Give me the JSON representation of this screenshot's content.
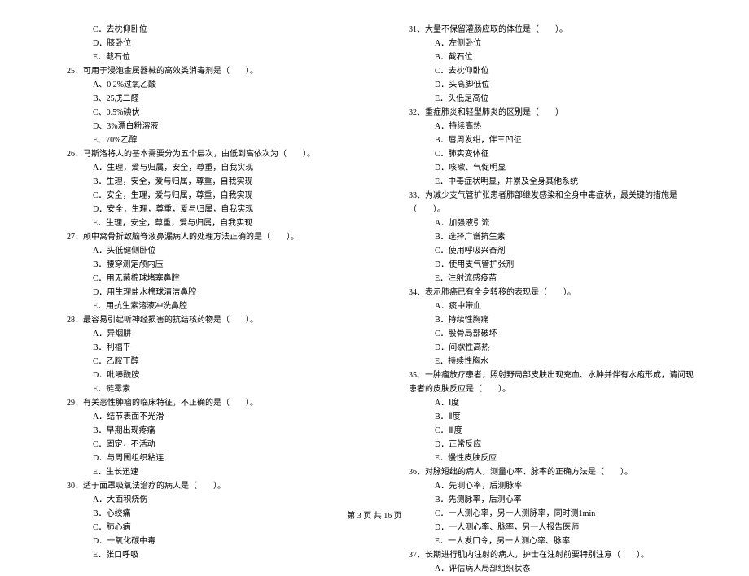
{
  "footer": "第 3 页 共 16 页",
  "left": {
    "pre_options": [
      "C．去枕仰卧位",
      "D．膝卧位",
      "E．截石位"
    ],
    "questions": [
      {
        "num": "25、",
        "stem": "可用于浸泡金属器械的高效类消毒剂是（　　）。",
        "opts": [
          "A、0.2%过氧乙酸",
          "B、25戊二醛",
          "C、0.5%碘伏",
          "D、3%漂白粉溶液",
          "E、70%乙醇"
        ]
      },
      {
        "num": "26、",
        "stem": "马斯洛将人的基本需要分为五个层次，由低到高依次为（　　）。",
        "opts": [
          "A．生理，爱与归属，安全，尊重，自我实现",
          "B．生理，安全，爱与归属，尊重，自我实现",
          "C．安全，生理，爱与归属，尊重，自我实现",
          "D．安全，生理，尊重，爱与归属，自我实现",
          "E．生理，安全，尊重，爱与归属，自我实现"
        ]
      },
      {
        "num": "27、",
        "stem": "颅中窝骨折致脑脊液鼻漏病人的处理方法正确的是（　　）。",
        "opts": [
          "A．头低健侧卧位",
          "B．腰穿测定颅内压",
          "C．用无菌棉球堵塞鼻腔",
          "D．用生理盐水棉球清洁鼻腔",
          "E．用抗生素溶液冲洗鼻腔"
        ]
      },
      {
        "num": "28、",
        "stem": "最容易引起听神经损害的抗结核药物是（　　）。",
        "opts": [
          "A．异烟肼",
          "B．利福平",
          "C．乙胺丁醇",
          "D．吡嗪酰胺",
          "E．链霉素"
        ]
      },
      {
        "num": "29、",
        "stem": "有关恶性肿瘤的临床特征，不正确的是（　　）。",
        "opts": [
          "A．结节表面不光滑",
          "B．早期出现疼痛",
          "C．固定，不活动",
          "D．与周围组织粘连",
          "E．生长迅速"
        ]
      },
      {
        "num": "30、",
        "stem": "适于面罩吸氧法治疗的病人是（　　）。",
        "opts": [
          "A．大面积烧伤",
          "B．心绞痛",
          "C．肺心病",
          "D．一氧化碳中毒",
          "E．张口呼吸"
        ]
      }
    ]
  },
  "right": {
    "questions": [
      {
        "num": "31、",
        "stem": "大量不保留灌肠应取的体位是（　　）。",
        "opts": [
          "A．左侧卧位",
          "B．截石位",
          "C．去枕仰卧位",
          "D．头高脚低位",
          "E．头低足高位"
        ]
      },
      {
        "num": "32、",
        "stem": "重症肺炎和轻型肺炎的区别是（　　）",
        "opts": [
          "A．持续高热",
          "B．唇周发绀，伴三凹征",
          "C．肺实变体征",
          "D．咳嗽、气促明显",
          "E．中毒症状明显，并累及全身其他系统"
        ]
      },
      {
        "num": "33、",
        "stem": "为减少支气管扩张患者肺部继发感染和全身中毒症状，最关键的措施是（　　）。",
        "opts": [
          "A．加强液引流",
          "B．选择广谱抗生素",
          "C．使用呼吸兴奋剂",
          "D．使用支气管扩张剂",
          "E．注射流感疫苗"
        ]
      },
      {
        "num": "34、",
        "stem": "表示肺癌已有全身转移的表现是（　　）。",
        "opts": [
          "A．痰中带血",
          "B．持续性胸痛",
          "C．股骨局部破坏",
          "D．间歇性高热",
          "E．持续性胸水"
        ]
      },
      {
        "num": "35、",
        "stem": "一肿瘤放疗患者，照射野局部皮肤出现充血、水肿并伴有水疱形成，请问现患者的皮肤反应是（　　）。",
        "opts": [
          "A．Ⅰ度",
          "B．Ⅱ度",
          "C．Ⅲ度",
          "D．正常反应",
          "E．慢性皮肤反应"
        ]
      },
      {
        "num": "36、",
        "stem": "对脉短绌的病人，测量心率、脉率的正确方法是（　　）。",
        "opts": [
          "A．先测心率，后测脉率",
          "B．先测脉率，后测心率",
          "C．一人测心率，另一人测脉率，同时测1min",
          "D．一人测心率、脉率，另一人报告医师",
          "E．一人发口令，另一人测心率、脉率"
        ]
      },
      {
        "num": "37、",
        "stem": "长期进行肌内注射的病人，护士在注射前要特别注意（　　）。",
        "opts_partial": [
          "A．评估病人局部组织状态"
        ]
      }
    ]
  }
}
